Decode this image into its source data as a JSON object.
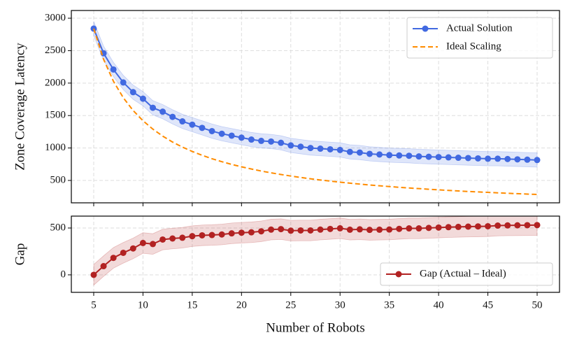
{
  "chart_data": [
    {
      "type": "line",
      "ylabel": "Zone Coverage Latency",
      "x": [
        5,
        6,
        7,
        8,
        9,
        10,
        11,
        12,
        13,
        14,
        15,
        16,
        17,
        18,
        19,
        20,
        21,
        22,
        23,
        24,
        25,
        26,
        27,
        28,
        29,
        30,
        31,
        32,
        33,
        34,
        35,
        36,
        37,
        38,
        39,
        40,
        41,
        42,
        43,
        44,
        45,
        46,
        47,
        48,
        49,
        50
      ],
      "xlim": [
        2.73,
        52.27
      ],
      "ylim": [
        155,
        3119
      ],
      "xticks": [
        5,
        10,
        15,
        20,
        25,
        30,
        35,
        40,
        45,
        50
      ],
      "yticks": [
        500,
        1000,
        1500,
        2000,
        2500,
        3000
      ],
      "grid": true,
      "legend": "upper right",
      "series": [
        {
          "name": "Actual Solution",
          "color": "#4169e1",
          "linestyle": "solid",
          "marker": true,
          "error": 110,
          "values": [
            2840,
            2460,
            2210,
            2010,
            1860,
            1760,
            1620,
            1560,
            1480,
            1410,
            1360,
            1310,
            1260,
            1220,
            1190,
            1160,
            1130,
            1110,
            1100,
            1080,
            1040,
            1020,
            1000,
            990,
            980,
            970,
            940,
            930,
            910,
            900,
            890,
            885,
            880,
            870,
            865,
            860,
            855,
            850,
            845,
            840,
            835,
            835,
            830,
            825,
            820,
            815
          ]
        },
        {
          "name": "Ideal Scaling",
          "color": "#ff8c00",
          "linestyle": "dashed",
          "marker": false,
          "values": [
            2840,
            2367,
            2029,
            1775,
            1578,
            1420,
            1291,
            1183,
            1092,
            1014,
            947,
            888,
            835,
            789,
            747,
            710,
            676,
            645,
            617,
            592,
            568,
            546,
            526,
            507,
            490,
            473,
            458,
            444,
            430,
            418,
            406,
            394,
            384,
            374,
            364,
            355,
            346,
            338,
            330,
            323,
            316,
            309,
            302,
            296,
            290,
            284
          ]
        }
      ]
    },
    {
      "type": "line",
      "ylabel": "Gap",
      "xlabel": "Number of Robots",
      "x": [
        5,
        6,
        7,
        8,
        9,
        10,
        11,
        12,
        13,
        14,
        15,
        16,
        17,
        18,
        19,
        20,
        21,
        22,
        23,
        24,
        25,
        26,
        27,
        28,
        29,
        30,
        31,
        32,
        33,
        34,
        35,
        36,
        37,
        38,
        39,
        40,
        41,
        42,
        43,
        44,
        45,
        46,
        47,
        48,
        49,
        50
      ],
      "xlim": [
        2.73,
        52.27
      ],
      "ylim": [
        -187,
        627
      ],
      "xticks": [
        5,
        10,
        15,
        20,
        25,
        30,
        35,
        40,
        45,
        50
      ],
      "yticks": [
        0,
        500
      ],
      "grid": true,
      "legend": "lower right",
      "series": [
        {
          "name": "Gap (Actual – Ideal)",
          "color": "#b22222",
          "linestyle": "solid",
          "marker": true,
          "error": 110,
          "values": [
            0,
            93,
            181,
            235,
            282,
            340,
            329,
            377,
            388,
            396,
            413,
            422,
            425,
            431,
            443,
            450,
            454,
            465,
            483,
            488,
            472,
            474,
            474,
            483,
            490,
            497,
            482,
            486,
            480,
            482,
            484,
            491,
            496,
            496,
            501,
            505,
            509,
            512,
            515,
            517,
            519,
            526,
            528,
            529,
            530,
            531
          ]
        }
      ]
    }
  ]
}
